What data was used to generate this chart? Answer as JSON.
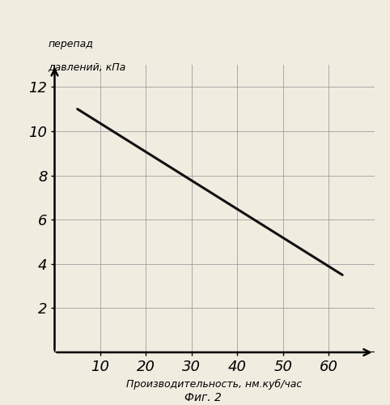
{
  "x_data": [
    5,
    63
  ],
  "y_data": [
    11.0,
    3.5
  ],
  "xlim": [
    0,
    70
  ],
  "ylim": [
    0,
    13
  ],
  "xticks": [
    10,
    20,
    30,
    40,
    50,
    60
  ],
  "yticks": [
    2,
    4,
    6,
    8,
    10,
    12
  ],
  "xlabel": "Производительность, нм.куб/час",
  "ylabel_line1": "перепад",
  "ylabel_line2": "давлений, кПа",
  "caption": "Фиг. 2",
  "line_color": "#111111",
  "line_width": 2.2,
  "grid_color": "#999999",
  "bg_color": "#f0ece0",
  "tick_fontsize": 13,
  "label_fontsize": 9,
  "caption_fontsize": 10,
  "fig_width": 4.82,
  "fig_height": 5.0
}
